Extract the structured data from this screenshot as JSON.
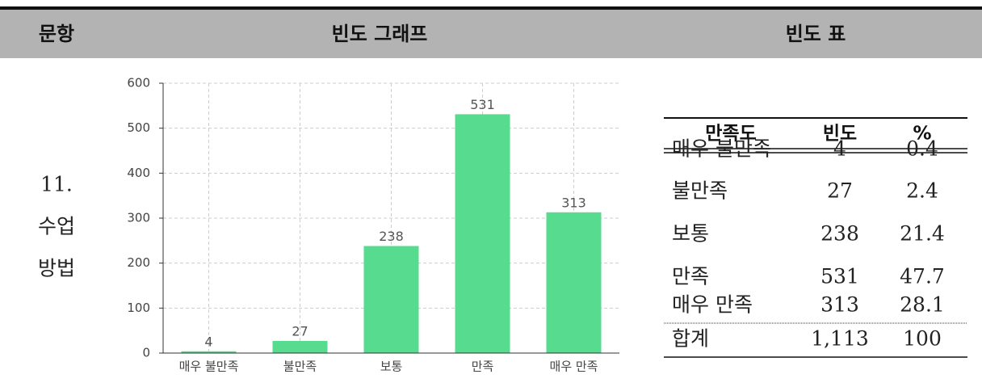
{
  "header": {
    "columns": [
      "문항",
      "빈도 그래프",
      "빈도 표"
    ]
  },
  "item": [
    "11.",
    "수업",
    "방법"
  ],
  "chart_data": {
    "type": "bar",
    "categories": [
      "매우 불만족",
      "불만족",
      "보통",
      "만족",
      "매우 만족"
    ],
    "values": [
      4,
      27,
      238,
      531,
      313
    ],
    "color": "#57db8e",
    "ylim": [
      0,
      600
    ],
    "yticks": [
      0,
      100,
      200,
      300,
      400,
      500,
      600
    ],
    "grid": true
  },
  "table": {
    "columns": [
      "만족도",
      "빈도",
      "%"
    ],
    "rows": [
      [
        "매우 불만족",
        "4",
        "0.4"
      ],
      [
        "불만족",
        "27",
        "2.4"
      ],
      [
        "보통",
        "238",
        "21.4"
      ],
      [
        "만족",
        "531",
        "47.7"
      ],
      [
        "매우 만족",
        "313",
        "28.1"
      ]
    ],
    "total": [
      "합계",
      "1,113",
      "100"
    ]
  }
}
